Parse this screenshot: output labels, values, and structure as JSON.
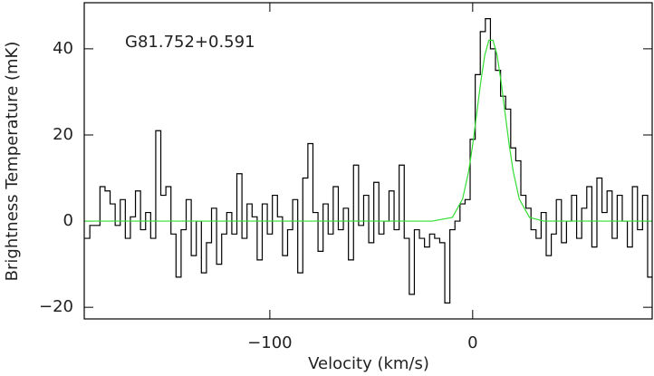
{
  "chart_data": {
    "type": "step",
    "annotation": "G81.752+0.591",
    "x_label": "Velocity (km/s)",
    "y_label": "Brightness Temperature (mK)",
    "xlim": [
      -191.5,
      88.5
    ],
    "ylim": [
      -22.7,
      50.7
    ],
    "xticks": [
      {
        "value": -100,
        "label": "−100"
      },
      0
    ],
    "yticks": [
      {
        "value": -20,
        "label": "−20"
      },
      0,
      20,
      40
    ],
    "series": [
      {
        "kind": "step",
        "color": "#000000",
        "x": [
          -190,
          -187.5,
          -185,
          -182.5,
          -180,
          -177.5,
          -175,
          -172.5,
          -170,
          -167.5,
          -165,
          -162.5,
          -160,
          -157.5,
          -155,
          -152.5,
          -150,
          -147.5,
          -145,
          -142.5,
          -140,
          -137.5,
          -135,
          -132.5,
          -130,
          -127.5,
          -125,
          -122.5,
          -120,
          -117.5,
          -115,
          -112.5,
          -110,
          -107.5,
          -105,
          -102.5,
          -100,
          -97.5,
          -95,
          -92.5,
          -90,
          -87.5,
          -85,
          -82.5,
          -80,
          -77.5,
          -75,
          -72.5,
          -70,
          -67.5,
          -65,
          -62.5,
          -60,
          -57.5,
          -55,
          -52.5,
          -50,
          -47.5,
          -45,
          -42.5,
          -40,
          -37.5,
          -35,
          -32.5,
          -30,
          -27.5,
          -25,
          -22.5,
          -20,
          -17.5,
          -15,
          -12.5,
          -10,
          -7.5,
          -5,
          -2.5,
          0,
          2.5,
          5,
          7.5,
          10,
          12.5,
          15,
          17.5,
          20,
          22.5,
          25,
          27.5,
          30,
          32.5,
          35,
          37.5,
          40,
          42.5,
          45,
          47.5,
          50,
          52.5,
          55,
          57.5,
          60,
          62.5,
          65,
          67.5,
          70,
          72.5,
          75,
          77.5,
          80,
          82.5,
          85,
          87.5
        ],
        "values": [
          -4,
          -1,
          -1,
          8,
          7,
          4,
          -1,
          5,
          -4,
          1,
          7,
          -2,
          2,
          -4,
          21,
          6,
          8,
          -3,
          -13,
          -2,
          5,
          -8,
          0,
          -12,
          -5,
          3,
          -10,
          -3,
          2,
          -3,
          11,
          -4,
          4,
          1,
          -9,
          4,
          -3,
          6,
          1,
          -8,
          -2,
          5,
          -12,
          10,
          18,
          2,
          -7,
          4,
          -3,
          8,
          -2,
          3,
          -9,
          13,
          -1,
          6,
          -5,
          9,
          -3,
          0,
          7,
          -2,
          13,
          -4,
          -17,
          -2,
          -4,
          -6,
          -3,
          -4,
          -5,
          -19,
          -2,
          0,
          4,
          5,
          19,
          34,
          44,
          47,
          40,
          35,
          29,
          26,
          17,
          14,
          6,
          3,
          -2,
          -4,
          2,
          -8,
          -3,
          5,
          -5,
          0,
          6,
          -4,
          3,
          8,
          -6,
          10,
          2,
          7,
          -4,
          6,
          0,
          -6,
          8,
          -2,
          6,
          -13
        ]
      },
      {
        "kind": "line",
        "color": "#33dd33",
        "x": [
          -191.5,
          -20,
          -10,
          -5,
          -2,
          0,
          2,
          4,
          6,
          8,
          10,
          12,
          14,
          16,
          18,
          20,
          23,
          28,
          35,
          88.5
        ],
        "values": [
          0,
          0,
          0.86,
          5.1,
          11.5,
          17.7,
          25.0,
          32.4,
          38.6,
          42.0,
          42.0,
          38.6,
          32.4,
          25.0,
          17.7,
          11.5,
          5.1,
          0.86,
          0,
          0
        ]
      }
    ]
  }
}
